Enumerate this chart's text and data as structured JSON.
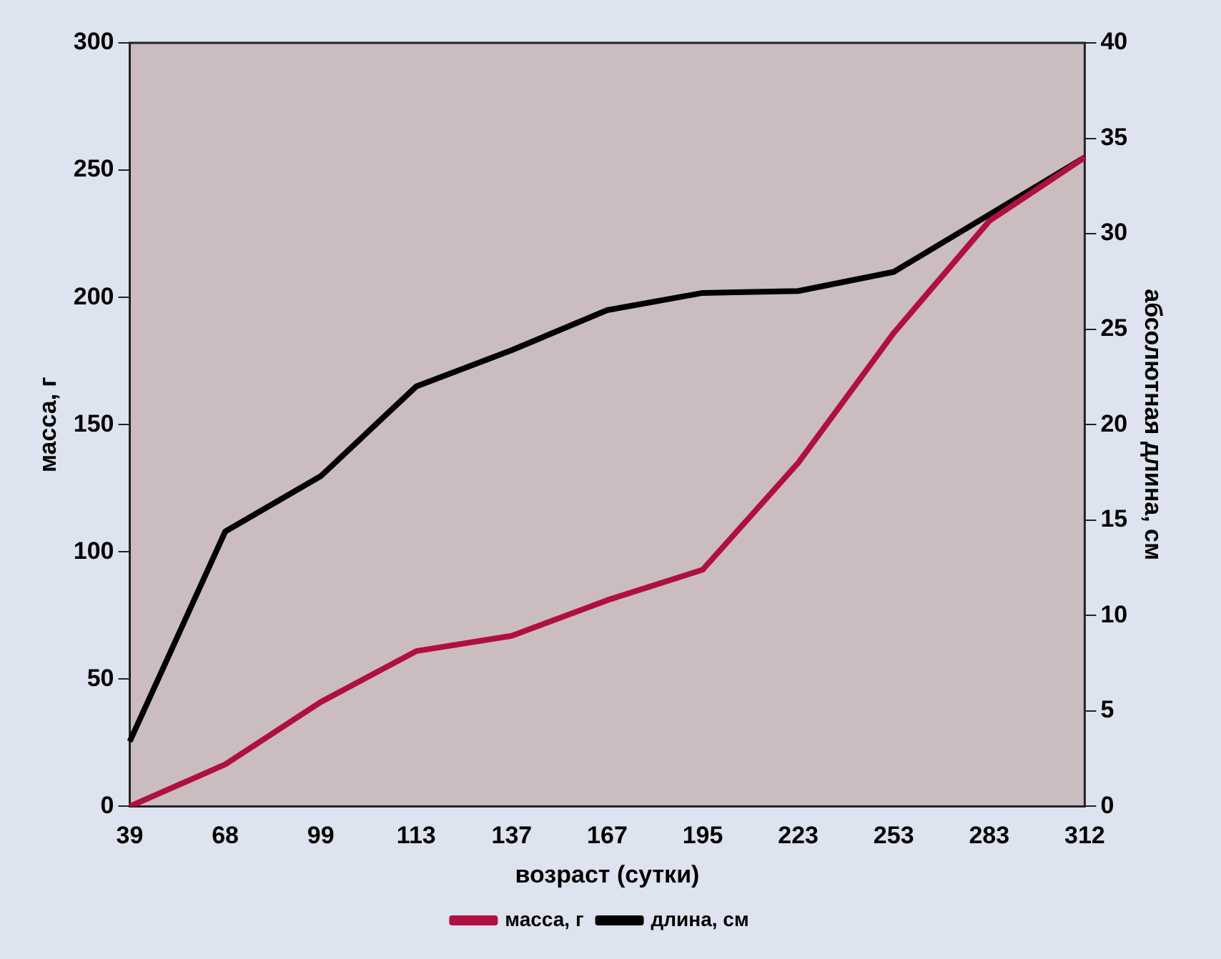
{
  "chart_data": {
    "type": "line",
    "xlabel": "возраст (сутки)",
    "ylabel": "масса, г",
    "y2label": "абсолютная длина, см",
    "categories": [
      "39",
      "68",
      "99",
      "113",
      "137",
      "167",
      "195",
      "223",
      "253",
      "283",
      "312"
    ],
    "series": [
      {
        "name": "масса, г",
        "color": "#b0103f",
        "values": [
          0,
          16.5,
          41,
          61,
          67,
          81,
          93,
          135,
          186,
          230,
          255
        ]
      },
      {
        "name": "длина, см",
        "color": "#000000",
        "axis": "y2",
        "values": [
          3.4,
          14.4,
          17.3,
          22,
          23.9,
          26,
          26.9,
          27,
          28,
          31,
          34
        ]
      }
    ],
    "ylim": [
      0,
      300
    ],
    "yticks": [
      0,
      50,
      100,
      150,
      200,
      250,
      300
    ],
    "y2lim": [
      0,
      40
    ],
    "y2ticks": [
      0,
      5,
      10,
      15,
      20,
      25,
      30,
      35,
      40
    ],
    "grid": false,
    "legend": "bottom",
    "marker": "none",
    "line_style": "solid"
  }
}
